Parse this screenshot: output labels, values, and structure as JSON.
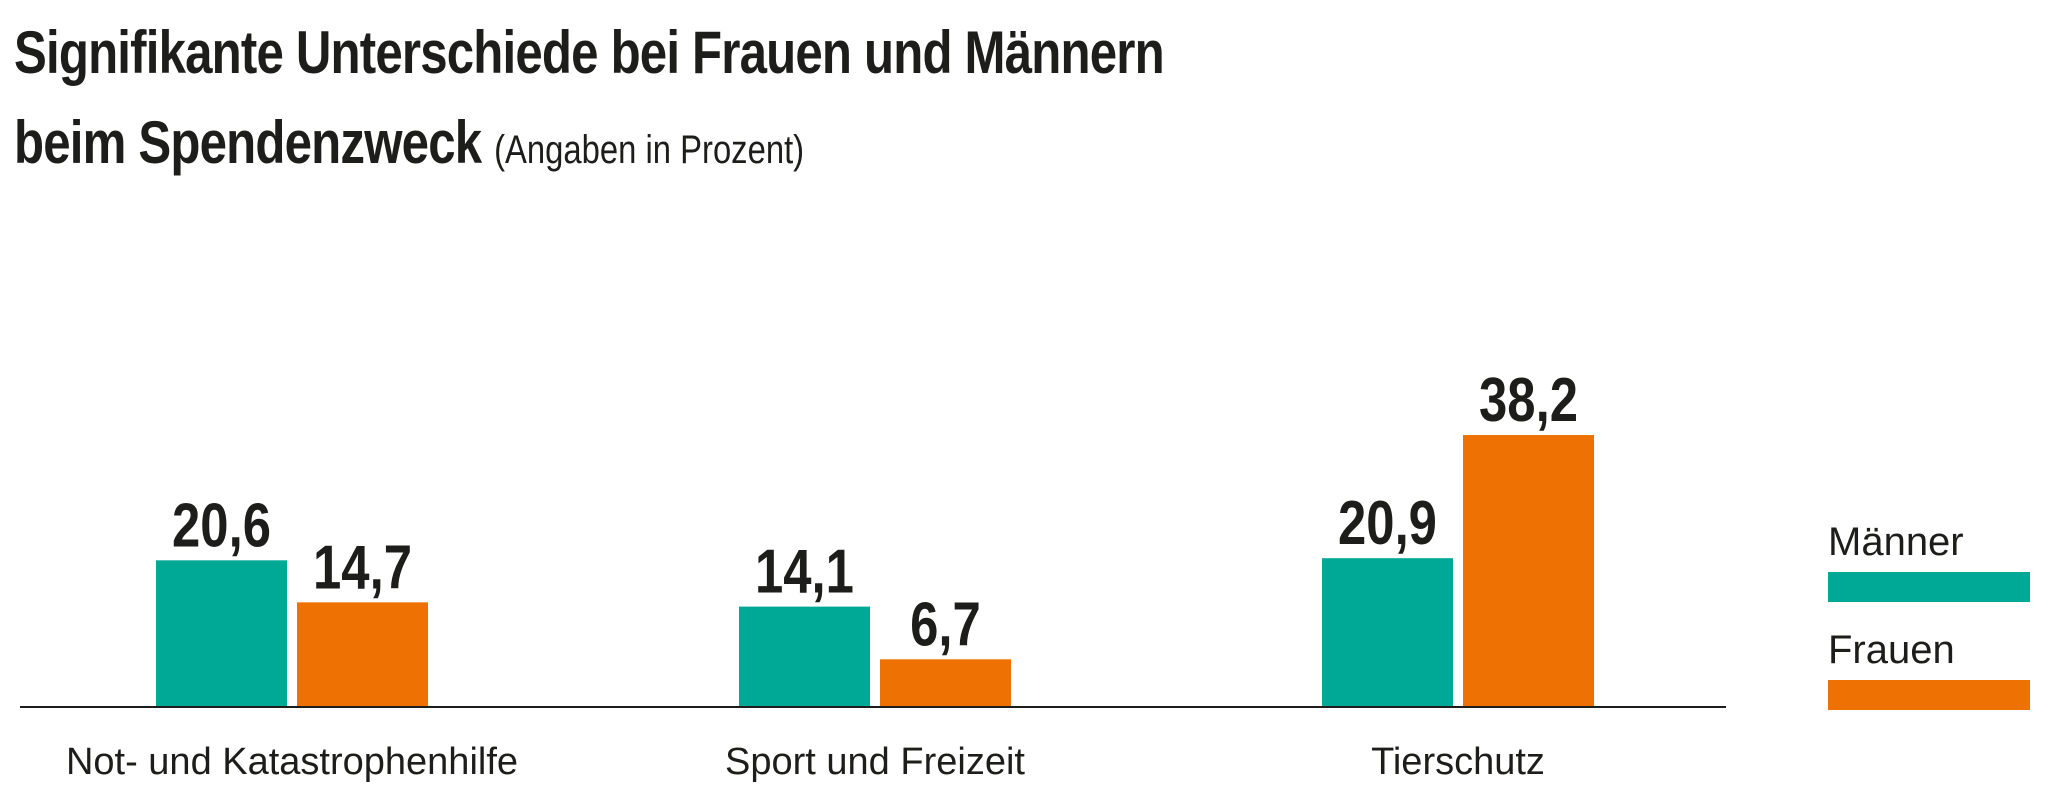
{
  "chart_data": {
    "type": "bar",
    "title": "Signifikante Unterschiede bei Frauen und Männern",
    "title_line2": "beim Spendenzweck",
    "subtitle": "(Angaben in Prozent)",
    "categories": [
      "Not- und Katastrophenhilfe",
      "Sport und Freizeit",
      "Tierschutz"
    ],
    "series": [
      {
        "name": "Männer",
        "values": [
          20.6,
          14.1,
          20.9
        ],
        "labels": [
          "20,6",
          "14,1",
          "20,9"
        ],
        "color": "#00a896"
      },
      {
        "name": "Frauen",
        "values": [
          14.7,
          6.7,
          38.2
        ],
        "labels": [
          "14,7",
          "6,7",
          "38,2"
        ],
        "color": "#ee7203"
      }
    ],
    "xlabel": "",
    "ylabel": "",
    "ylim": [
      0,
      40
    ],
    "grid": false,
    "legend_position": "right"
  }
}
